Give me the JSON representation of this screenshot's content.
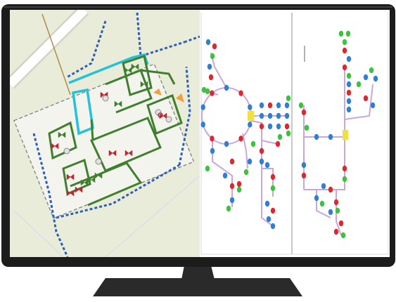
{
  "monitor": {
    "bezel_color": "#1c1c1c",
    "stand_color": "#2a2a2a"
  },
  "map_panel": {
    "background": "#e8ecd9",
    "road_label": "",
    "colors": {
      "pipe": "#3f7f2e",
      "dashed_boundary": "#2f5fb3",
      "highlight": "#22c3d8",
      "valve_red": "#c0262f",
      "accent_orange": "#f0a040",
      "road": "#ffffff",
      "site_pad": "#f4f4ef"
    }
  },
  "schematic_panels": {
    "background": "#ffffff",
    "colors": {
      "pipe": "#c9a8d9",
      "node_blue": "#2f7fd6",
      "node_red": "#e0262f",
      "node_green": "#3cc23c",
      "junction_yellow": "#f0e040"
    }
  }
}
